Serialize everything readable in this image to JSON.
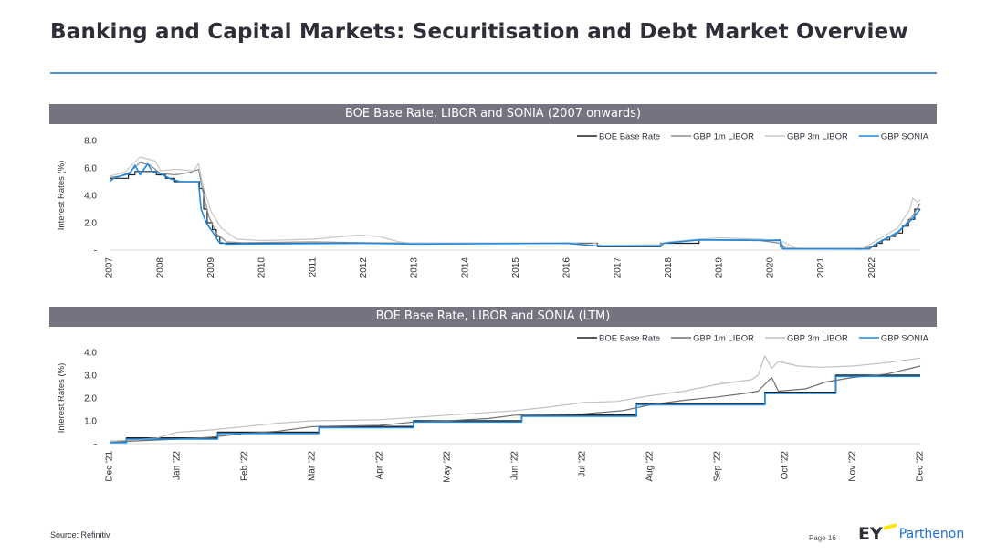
{
  "page": {
    "title": "Banking and Capital Markets: Securitisation and Debt Market Overview",
    "source": "Source: Refinitiv",
    "page_number": "Page 16",
    "logo": {
      "ey": "EY",
      "name": "Parthenon",
      "mark_color": "#ffe600",
      "name_color": "#1d6fd0"
    }
  },
  "colors": {
    "title_rule": "#4a90d9",
    "banner": "#747480"
  },
  "chart_data": [
    {
      "type": "line",
      "title": "BOE Base Rate, LIBOR and SONIA (2007 onwards)",
      "ylabel": "Interest Rates (%)",
      "xlabel": "",
      "ylim": [
        0,
        8
      ],
      "yticks": [
        0,
        2,
        4,
        6,
        8
      ],
      "ytick_labels": [
        "-",
        "2.0",
        "4.0",
        "6.0",
        "8.0"
      ],
      "xlim": [
        2007,
        2022.95
      ],
      "xticks": [
        2007,
        2008,
        2009,
        2010,
        2011,
        2012,
        2013,
        2014,
        2015,
        2016,
        2017,
        2018,
        2019,
        2020,
        2021,
        2022
      ],
      "xtick_labels": [
        "2007",
        "2008",
        "2009",
        "2010",
        "2011",
        "2012",
        "2013",
        "2014",
        "2015",
        "2016",
        "2017",
        "2018",
        "2019",
        "2020",
        "2021",
        "2022"
      ],
      "grid": false,
      "legend_position": "top-right",
      "series": [
        {
          "name": "BOE Base Rate",
          "color": "#222222",
          "step": true,
          "points": [
            [
              2007.0,
              5.25
            ],
            [
              2007.05,
              5.25
            ],
            [
              2007.37,
              5.5
            ],
            [
              2007.5,
              5.75
            ],
            [
              2007.92,
              5.5
            ],
            [
              2008.1,
              5.25
            ],
            [
              2008.28,
              5.0
            ],
            [
              2008.77,
              4.5
            ],
            [
              2008.85,
              3.0
            ],
            [
              2008.92,
              2.0
            ],
            [
              2009.02,
              1.5
            ],
            [
              2009.1,
              1.0
            ],
            [
              2009.17,
              0.5
            ],
            [
              2016.6,
              0.25
            ],
            [
              2017.84,
              0.5
            ],
            [
              2018.6,
              0.75
            ],
            [
              2020.2,
              0.25
            ],
            [
              2020.24,
              0.1
            ],
            [
              2021.96,
              0.25
            ],
            [
              2022.1,
              0.5
            ],
            [
              2022.2,
              0.75
            ],
            [
              2022.35,
              1.0
            ],
            [
              2022.46,
              1.25
            ],
            [
              2022.6,
              1.75
            ],
            [
              2022.72,
              2.25
            ],
            [
              2022.84,
              3.0
            ],
            [
              2022.95,
              3.0
            ]
          ]
        },
        {
          "name": "GBP 1m LIBOR",
          "color": "#8c8c8c",
          "step": false,
          "points": [
            [
              2007.0,
              5.3
            ],
            [
              2007.2,
              5.4
            ],
            [
              2007.4,
              5.7
            ],
            [
              2007.6,
              6.4
            ],
            [
              2007.8,
              6.2
            ],
            [
              2008.0,
              5.6
            ],
            [
              2008.3,
              5.5
            ],
            [
              2008.6,
              5.7
            ],
            [
              2008.75,
              5.9
            ],
            [
              2008.85,
              4.0
            ],
            [
              2008.95,
              2.5
            ],
            [
              2009.1,
              1.2
            ],
            [
              2009.3,
              0.6
            ],
            [
              2009.6,
              0.55
            ],
            [
              2011.0,
              0.6
            ],
            [
              2012.0,
              0.55
            ],
            [
              2013.0,
              0.5
            ],
            [
              2016.0,
              0.5
            ],
            [
              2016.6,
              0.3
            ],
            [
              2017.8,
              0.35
            ],
            [
              2017.9,
              0.5
            ],
            [
              2018.6,
              0.75
            ],
            [
              2019.8,
              0.7
            ],
            [
              2020.2,
              0.5
            ],
            [
              2020.3,
              0.15
            ],
            [
              2021.8,
              0.06
            ],
            [
              2022.0,
              0.3
            ],
            [
              2022.5,
              1.2
            ],
            [
              2022.8,
              2.5
            ],
            [
              2022.95,
              3.4
            ]
          ]
        },
        {
          "name": "GBP 3m LIBOR",
          "color": "#c8c8c8",
          "step": false,
          "points": [
            [
              2007.0,
              5.4
            ],
            [
              2007.3,
              5.7
            ],
            [
              2007.6,
              6.8
            ],
            [
              2007.9,
              6.5
            ],
            [
              2008.0,
              5.8
            ],
            [
              2008.3,
              5.9
            ],
            [
              2008.65,
              5.8
            ],
            [
              2008.75,
              6.3
            ],
            [
              2008.85,
              4.5
            ],
            [
              2009.0,
              2.8
            ],
            [
              2009.2,
              1.6
            ],
            [
              2009.5,
              0.8
            ],
            [
              2010.0,
              0.7
            ],
            [
              2011.0,
              0.8
            ],
            [
              2011.9,
              1.1
            ],
            [
              2012.3,
              1.0
            ],
            [
              2012.7,
              0.6
            ],
            [
              2013.0,
              0.5
            ],
            [
              2016.5,
              0.55
            ],
            [
              2016.7,
              0.35
            ],
            [
              2017.8,
              0.4
            ],
            [
              2018.0,
              0.6
            ],
            [
              2018.6,
              0.8
            ],
            [
              2019.0,
              0.9
            ],
            [
              2019.8,
              0.8
            ],
            [
              2020.2,
              0.7
            ],
            [
              2020.5,
              0.15
            ],
            [
              2021.8,
              0.08
            ],
            [
              2022.0,
              0.5
            ],
            [
              2022.5,
              1.6
            ],
            [
              2022.75,
              3.0
            ],
            [
              2022.8,
              3.8
            ],
            [
              2022.9,
              3.5
            ],
            [
              2022.95,
              3.7
            ]
          ]
        },
        {
          "name": "GBP SONIA",
          "color": "#1f8ae0",
          "step": false,
          "points": [
            [
              2007.0,
              5.0
            ],
            [
              2007.1,
              5.3
            ],
            [
              2007.4,
              5.6
            ],
            [
              2007.5,
              6.2
            ],
            [
              2007.6,
              5.5
            ],
            [
              2007.75,
              6.3
            ],
            [
              2007.85,
              5.7
            ],
            [
              2008.0,
              5.6
            ],
            [
              2008.2,
              5.2
            ],
            [
              2008.4,
              5.0
            ],
            [
              2008.75,
              5.0
            ],
            [
              2008.8,
              3.0
            ],
            [
              2008.9,
              2.0
            ],
            [
              2009.05,
              1.2
            ],
            [
              2009.15,
              0.6
            ],
            [
              2009.3,
              0.45
            ],
            [
              2012.0,
              0.5
            ],
            [
              2013.0,
              0.45
            ],
            [
              2016.0,
              0.5
            ],
            [
              2016.6,
              0.3
            ],
            [
              2017.85,
              0.3
            ],
            [
              2017.9,
              0.5
            ],
            [
              2018.6,
              0.75
            ],
            [
              2020.2,
              0.7
            ],
            [
              2020.25,
              0.1
            ],
            [
              2021.95,
              0.1
            ],
            [
              2022.1,
              0.5
            ],
            [
              2022.3,
              0.9
            ],
            [
              2022.5,
              1.3
            ],
            [
              2022.65,
              1.8
            ],
            [
              2022.8,
              2.3
            ],
            [
              2022.95,
              3.0
            ]
          ]
        }
      ]
    },
    {
      "type": "line",
      "title": "BOE Base Rate, LIBOR and SONIA (LTM)",
      "ylabel": "Interest Rates (%)",
      "xlabel": "",
      "ylim": [
        0,
        4
      ],
      "yticks": [
        0,
        1,
        2,
        3,
        4
      ],
      "ytick_labels": [
        "-",
        "1.0",
        "2.0",
        "3.0",
        "4.0"
      ],
      "xlim": [
        0,
        12
      ],
      "xticks": [
        0,
        1,
        2,
        3,
        4,
        5,
        6,
        7,
        8,
        9,
        10,
        11,
        12
      ],
      "xtick_labels": [
        "Dec '21",
        "Jan '22",
        "Feb '22",
        "Mar '22",
        "Apr '22",
        "May '22",
        "Jun '22",
        "Jul '22",
        "Aug '22",
        "Sep '22",
        "Oct '22",
        "Nov '22",
        "Dec '22"
      ],
      "grid": false,
      "legend_position": "top-right",
      "series": [
        {
          "name": "BOE Base Rate",
          "color": "#222222",
          "step": true,
          "points": [
            [
              0,
              0.1
            ],
            [
              0.25,
              0.25
            ],
            [
              1.6,
              0.5
            ],
            [
              3.1,
              0.75
            ],
            [
              4.5,
              1.0
            ],
            [
              6.1,
              1.25
            ],
            [
              7.8,
              1.75
            ],
            [
              9.7,
              2.25
            ],
            [
              10.75,
              3.0
            ],
            [
              12,
              3.0
            ]
          ]
        },
        {
          "name": "GBP 1m LIBOR",
          "color": "#6e6e6e",
          "step": false,
          "points": [
            [
              0,
              0.07
            ],
            [
              1.0,
              0.2
            ],
            [
              1.5,
              0.28
            ],
            [
              2.0,
              0.45
            ],
            [
              2.5,
              0.55
            ],
            [
              3.0,
              0.75
            ],
            [
              4.0,
              0.8
            ],
            [
              4.5,
              0.95
            ],
            [
              5.0,
              1.0
            ],
            [
              5.6,
              1.1
            ],
            [
              6.0,
              1.25
            ],
            [
              7.0,
              1.3
            ],
            [
              7.6,
              1.45
            ],
            [
              8.0,
              1.7
            ],
            [
              8.5,
              1.9
            ],
            [
              9.0,
              2.05
            ],
            [
              9.4,
              2.2
            ],
            [
              9.6,
              2.3
            ],
            [
              9.8,
              2.9
            ],
            [
              9.9,
              2.3
            ],
            [
              10.3,
              2.4
            ],
            [
              10.6,
              2.7
            ],
            [
              11.0,
              2.9
            ],
            [
              11.5,
              3.05
            ],
            [
              12,
              3.4
            ]
          ]
        },
        {
          "name": "GBP 3m LIBOR",
          "color": "#c0c0c0",
          "step": false,
          "points": [
            [
              0,
              0.1
            ],
            [
              0.7,
              0.25
            ],
            [
              1.0,
              0.5
            ],
            [
              1.5,
              0.6
            ],
            [
              2.0,
              0.75
            ],
            [
              2.5,
              0.9
            ],
            [
              3.0,
              1.0
            ],
            [
              4.0,
              1.05
            ],
            [
              4.5,
              1.15
            ],
            [
              5.0,
              1.25
            ],
            [
              6.0,
              1.45
            ],
            [
              6.5,
              1.6
            ],
            [
              7.0,
              1.8
            ],
            [
              7.5,
              1.85
            ],
            [
              8.0,
              2.1
            ],
            [
              8.5,
              2.3
            ],
            [
              9.0,
              2.6
            ],
            [
              9.5,
              2.8
            ],
            [
              9.6,
              3.0
            ],
            [
              9.7,
              3.85
            ],
            [
              9.8,
              3.3
            ],
            [
              9.9,
              3.6
            ],
            [
              10.2,
              3.4
            ],
            [
              10.5,
              3.35
            ],
            [
              11.0,
              3.4
            ],
            [
              11.5,
              3.55
            ],
            [
              12,
              3.75
            ]
          ]
        },
        {
          "name": "GBP SONIA",
          "color": "#1f8ae0",
          "step": true,
          "points": [
            [
              0,
              0.05
            ],
            [
              0.25,
              0.2
            ],
            [
              1.6,
              0.45
            ],
            [
              3.1,
              0.7
            ],
            [
              4.5,
              0.95
            ],
            [
              6.1,
              1.2
            ],
            [
              7.8,
              1.7
            ],
            [
              9.7,
              2.2
            ],
            [
              10.75,
              2.95
            ],
            [
              12,
              2.95
            ]
          ]
        }
      ]
    }
  ]
}
